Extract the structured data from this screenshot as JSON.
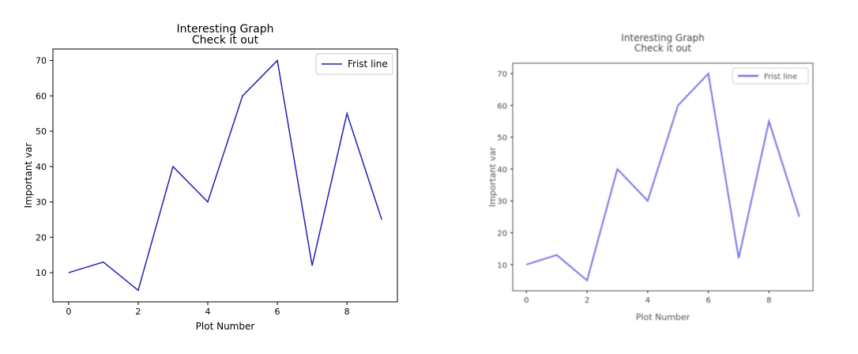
{
  "chart_data": [
    {
      "type": "line",
      "title": [
        "Interesting Graph",
        "Check it out"
      ],
      "xlabel": "Plot Number",
      "ylabel": "Important var",
      "x": [
        0,
        1,
        2,
        3,
        4,
        5,
        6,
        7,
        8,
        9
      ],
      "series": [
        {
          "name": "Frist line",
          "values": [
            10,
            13,
            5,
            40,
            30,
            60,
            70,
            12,
            55,
            25
          ],
          "color": "#1f1fb4"
        }
      ],
      "xticks": [
        "0",
        "2",
        "4",
        "6",
        "8"
      ],
      "yticks": [
        "10",
        "20",
        "30",
        "40",
        "50",
        "60",
        "70"
      ],
      "xlim": [
        -0.45,
        9.45
      ],
      "ylim": [
        1.75,
        73.25
      ],
      "grid": false,
      "legend": "top-right"
    },
    {
      "type": "line",
      "title": [
        "Interesting Graph",
        "Check it out"
      ],
      "xlabel": "Plot Number",
      "ylabel": "Important var",
      "x": [
        0,
        1,
        2,
        3,
        4,
        5,
        6,
        7,
        8,
        9
      ],
      "series": [
        {
          "name": "Frist line",
          "values": [
            10,
            13,
            5,
            40,
            30,
            60,
            70,
            12,
            55,
            25
          ],
          "color": "#6a6ae0"
        }
      ],
      "xticks": [
        "0",
        "2",
        "4",
        "6",
        "8"
      ],
      "yticks": [
        "10",
        "20",
        "30",
        "40",
        "50",
        "60",
        "70"
      ],
      "xlim": [
        -0.45,
        9.45
      ],
      "ylim": [
        1.75,
        73.25
      ],
      "grid": false,
      "legend": "top-right"
    }
  ]
}
